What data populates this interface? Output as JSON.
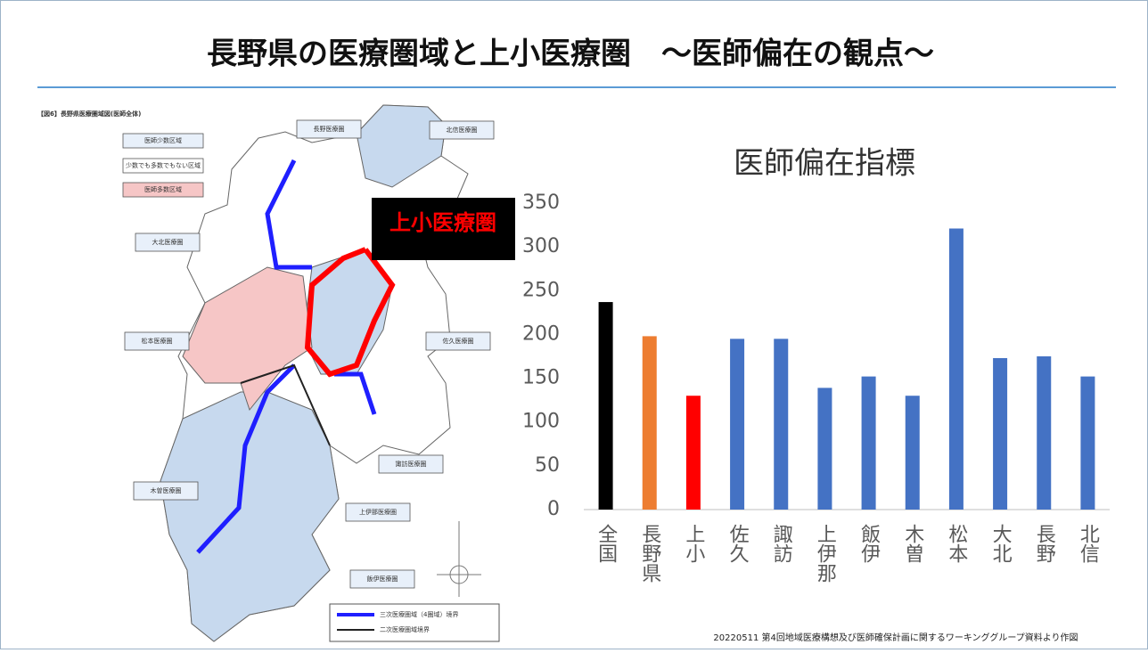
{
  "header": {
    "title": "長野県の医療圏域と上小医療圏　～医師偏在の観点～"
  },
  "map": {
    "caption": "【図6】長野県医療圏域図(医師全体)",
    "legend": [
      "医師少数区域",
      "少数でも多数でもない区域",
      "医師多数区域"
    ],
    "regions": [
      "長野医療圏",
      "北信医療圏",
      "大北医療圏",
      "松本医療圏",
      "佐久医療圏",
      "諏訪医療圏",
      "上伊那医療圏",
      "木曽医療圏",
      "飯伊医療圏"
    ],
    "line_legend": [
      "三次医療圏域（4圏域）境界",
      "二次医療圏域境界"
    ],
    "highlight": "上小医療圏"
  },
  "chart_data": {
    "type": "bar",
    "title": "医師偏在指標",
    "categories": [
      "全国",
      "長野県",
      "上小",
      "佐久",
      "諏訪",
      "上伊那",
      "飯伊",
      "木曽",
      "松本",
      "大北",
      "長野",
      "北信"
    ],
    "values": [
      237,
      198,
      130,
      195,
      195,
      139,
      152,
      130,
      321,
      173,
      175,
      152
    ],
    "colors": [
      "#000000",
      "#ed7d31",
      "#ff0000",
      "#4472c4",
      "#4472c4",
      "#4472c4",
      "#4472c4",
      "#4472c4",
      "#4472c4",
      "#4472c4",
      "#4472c4",
      "#4472c4"
    ],
    "ylim": [
      0,
      350
    ],
    "yticks": [
      0,
      50,
      100,
      150,
      200,
      250,
      300,
      350
    ],
    "grid": false
  },
  "source": "20220511 第4回地域医療構想及び医師確保計画に関するワーキンググループ資料より作図"
}
